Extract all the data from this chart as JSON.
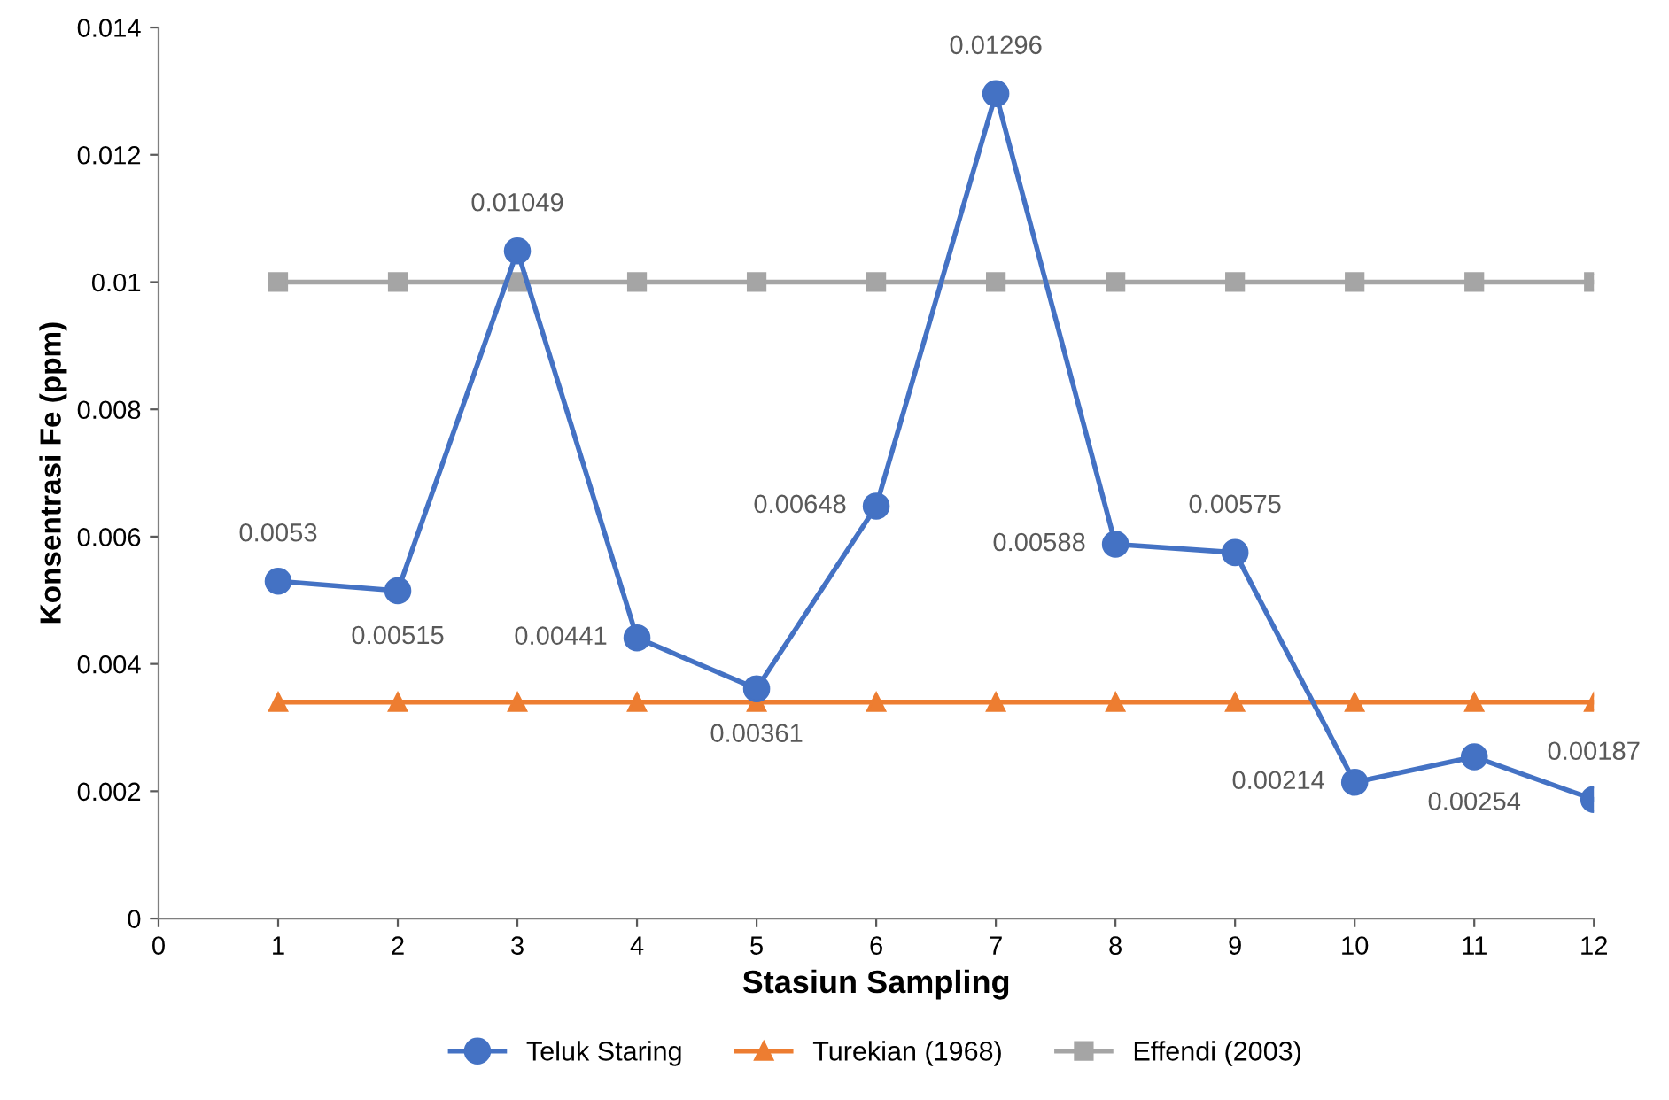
{
  "chart_data": {
    "type": "line",
    "xlabel": "Stasiun Sampling",
    "ylabel": "Konsentrasi Fe (ppm)",
    "x": [
      1,
      2,
      3,
      4,
      5,
      6,
      7,
      8,
      9,
      10,
      11,
      12
    ],
    "xlim": [
      0,
      12
    ],
    "xticks": [
      0,
      1,
      2,
      3,
      4,
      5,
      6,
      7,
      8,
      9,
      10,
      11,
      12
    ],
    "ylim": [
      0,
      0.014
    ],
    "yticks": [
      0,
      0.002,
      0.004,
      0.006,
      0.008,
      0.01,
      0.012,
      0.014
    ],
    "grid": false,
    "legend": "bottom",
    "series": [
      {
        "name": "Teluk Staring",
        "color": "#4472c4",
        "marker": "circle",
        "values": [
          0.0053,
          0.00515,
          0.01049,
          0.00441,
          0.00361,
          0.00648,
          0.01296,
          0.00588,
          0.00575,
          0.00214,
          0.00254,
          0.00187
        ],
        "value_labels": [
          "0.0053",
          "0.00515",
          "0.01049",
          "0.00441",
          "0.00361",
          "0.00648",
          "0.01296",
          "0.00588",
          "0.00575",
          "0.00214",
          "0.00254",
          "0.00187"
        ]
      },
      {
        "name": "Turekian (1968)",
        "color": "#ed7d31",
        "marker": "triangle",
        "values": [
          0.0034,
          0.0034,
          0.0034,
          0.0034,
          0.0034,
          0.0034,
          0.0034,
          0.0034,
          0.0034,
          0.0034,
          0.0034,
          0.0034
        ]
      },
      {
        "name": "Effendi (2003)",
        "color": "#a5a5a5",
        "marker": "square",
        "values": [
          0.01,
          0.01,
          0.01,
          0.01,
          0.01,
          0.01,
          0.01,
          0.01,
          0.01,
          0.01,
          0.01,
          0.01
        ]
      }
    ]
  }
}
